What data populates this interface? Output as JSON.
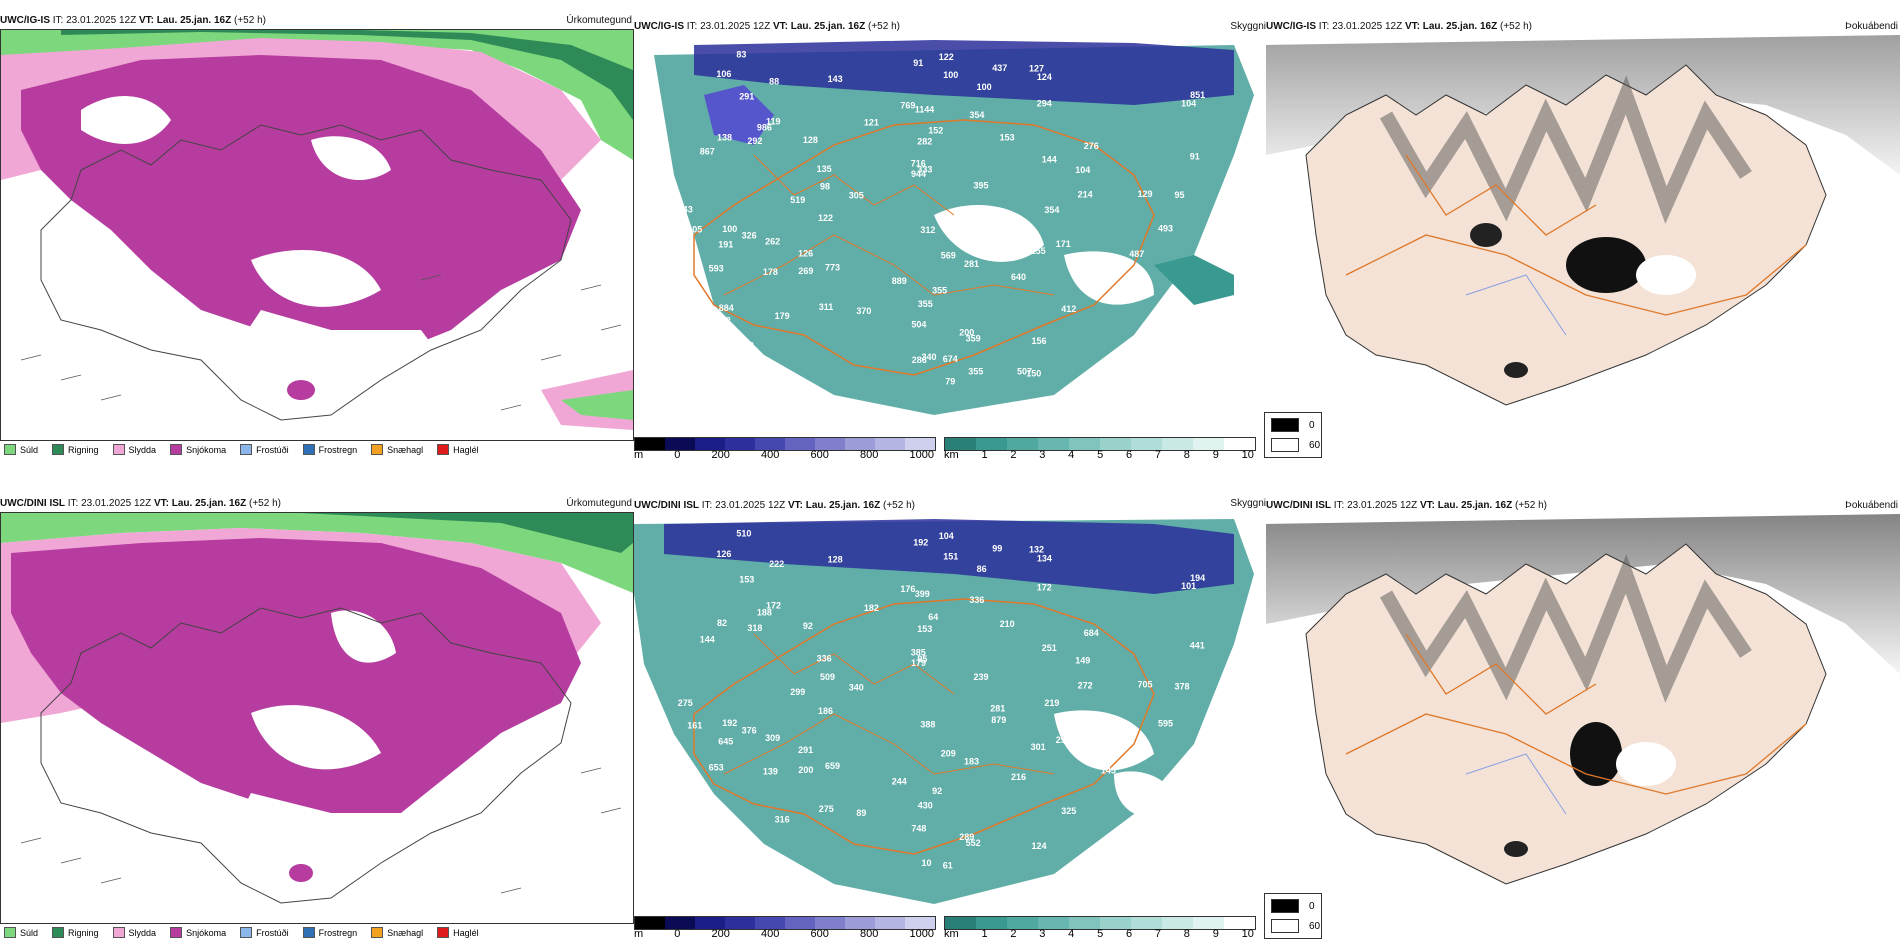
{
  "colors": {
    "suld": "#7dd87d",
    "rigning": "#2e8b57",
    "slydda": "#f1a7d6",
    "snjokoma": "#b63c9f",
    "frostudi": "#8ab6ea",
    "frostregn": "#2f6fb5",
    "snaehagl": "#f2a220",
    "haglel": "#e01b1b",
    "land_tan": "#f3e2d5",
    "teal": "#3a9a92",
    "road_orange": "#e0782a"
  },
  "rows": [
    {
      "precip": {
        "model": "UWC/IG-IS",
        "it_label": "IT:",
        "it": "23.01.2025 12Z",
        "vt_label": "VT:",
        "vt": "Lau. 25.jan. 16Z",
        "lead": "(+52 h)",
        "kind": "Úrkomutegund"
      },
      "cloud": {
        "model": "UWC/IG-IS",
        "it_label": "IT:",
        "it": "23.01.2025 12Z",
        "vt_label": "VT:",
        "vt": "Lau. 25.jan. 16Z",
        "lead": "(+52 h)",
        "kind": "Skyggni"
      },
      "fog": {
        "model": "UWC/IG-IS",
        "it_label": "IT:",
        "it": "23.01.2025 12Z",
        "vt_label": "VT:",
        "vt": "Lau. 25.jan. 16Z",
        "lead": "(+52 h)",
        "kind": "Þokuábendi"
      }
    },
    {
      "precip": {
        "model": "UWC/DINI ISL",
        "it_label": "IT:",
        "it": "23.01.2025 12Z",
        "vt_label": "VT:",
        "vt": "Lau. 25.jan. 16Z",
        "lead": "(+52 h)",
        "kind": "Úrkomutegund"
      },
      "cloud": {
        "model": "UWC/DINI ISL",
        "it_label": "IT:",
        "it": "23.01.2025 12Z",
        "vt_label": "VT:",
        "vt": "Lau. 25.jan. 16Z",
        "lead": "(+52 h)",
        "kind": "Skyggni"
      },
      "fog": {
        "model": "UWC/DINI ISL",
        "it_label": "IT:",
        "it": "23.01.2025 12Z",
        "vt_label": "VT:",
        "vt": "Lau. 25.jan. 16Z",
        "lead": "(+52 h)",
        "kind": "Þokuábendi"
      }
    }
  ],
  "precip_legend": [
    "Súld",
    "Rigning",
    "Slydda",
    "Snjókoma",
    "Frostúði",
    "Frostregn",
    "Snæhagl",
    "Haglél"
  ],
  "ceiling_scale": {
    "unit": "m",
    "ticks": [
      "0",
      "200",
      "400",
      "600",
      "800",
      "1000"
    ]
  },
  "visibility_scale": {
    "unit": "km",
    "ticks": [
      "1",
      "2",
      "3",
      "4",
      "5",
      "6",
      "7",
      "8",
      "9",
      "10"
    ]
  },
  "fog_legend": {
    "high": "0",
    "low": "60"
  },
  "ceiling_labels_top": [
    "122",
    "83",
    "91",
    "106",
    "437",
    "143",
    "127",
    "100",
    "124",
    "100",
    "88",
    "104",
    "291",
    "851",
    "769",
    "294",
    "119",
    "1144",
    "354",
    "986",
    "121",
    "138",
    "128",
    "152",
    "153",
    "276",
    "292",
    "282",
    "867",
    "144",
    "91",
    "716",
    "944",
    "333",
    "135",
    "104",
    "98",
    "129",
    "95",
    "214",
    "395",
    "305",
    "519",
    "354",
    "122",
    "343",
    "153",
    "100",
    "312",
    "394",
    "326",
    "493",
    "405",
    "171",
    "155",
    "126",
    "262",
    "191",
    "281",
    "487",
    "569",
    "773",
    "593",
    "269",
    "165",
    "178",
    "640",
    "889",
    "355",
    "202",
    "355",
    "370",
    "412",
    "311",
    "242",
    "884",
    "179",
    "198",
    "504",
    "359",
    "200",
    "252",
    "156",
    "270",
    "340",
    "242",
    "674",
    "868",
    "355",
    "507",
    "286",
    "905",
    "150",
    "166",
    "79"
  ],
  "ceiling_labels_bottom": [
    "104",
    "510",
    "192",
    "126",
    "99",
    "128",
    "132",
    "151",
    "134",
    "86",
    "222",
    "101",
    "153",
    "194",
    "176",
    "172",
    "172",
    "399",
    "336",
    "188",
    "182",
    "82",
    "92",
    "64",
    "210",
    "684",
    "318",
    "153",
    "144",
    "251",
    "441",
    "385",
    "179",
    "95",
    "336",
    "149",
    "509",
    "705",
    "378",
    "272",
    "239",
    "340",
    "299",
    "219",
    "186",
    "275",
    "281",
    "192",
    "388",
    "879",
    "376",
    "595",
    "161",
    "293",
    "301",
    "291",
    "309",
    "645",
    "183",
    "195",
    "209",
    "659",
    "653",
    "200",
    "145",
    "139",
    "216",
    "244",
    "92",
    "862",
    "430",
    "89",
    "325",
    "275",
    "183",
    "10",
    "316",
    "663",
    "748",
    "552",
    "289",
    "497",
    "124",
    "53",
    "10",
    "104",
    "61"
  ]
}
